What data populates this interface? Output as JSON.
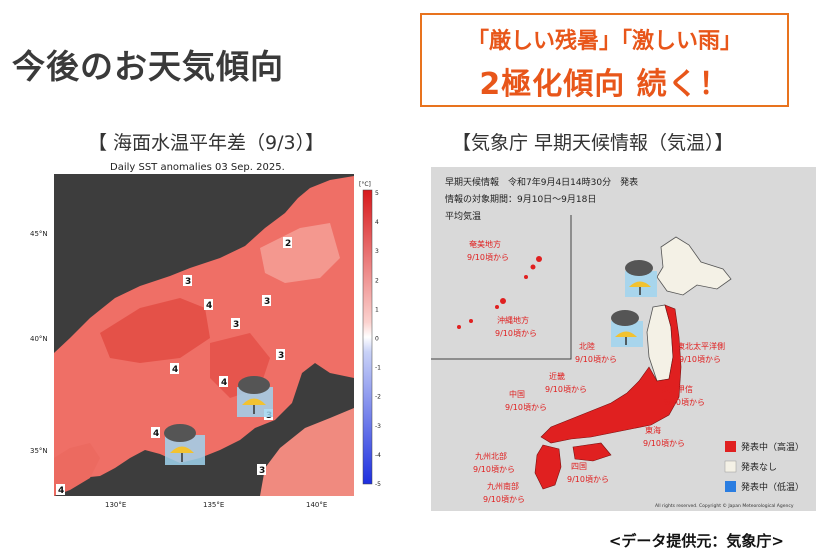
{
  "header": {
    "title": "今後のお天気傾向",
    "headline_line1": "「厳しい残暑」「激しい雨」",
    "headline_line2": "2極化傾向 続く！"
  },
  "left_panel": {
    "caption": "【 海面水温平年差（9/3）】",
    "map_title": "Daily SST anomalies 03 Sep. 2025.",
    "colorbar_unit": "[°C]",
    "colorbar_ticks": [
      "5",
      "4",
      "3",
      "2",
      "1",
      "0",
      "-1",
      "-2",
      "-3",
      "-4",
      "-5"
    ],
    "lat_labels": [
      "45°N",
      "40°N",
      "35°N"
    ],
    "lon_labels": [
      "130°E",
      "135°E",
      "140°E"
    ],
    "contour_labels": [
      "2",
      "3",
      "3",
      "4",
      "3",
      "3",
      "4",
      "4",
      "3",
      "4",
      "3",
      "4"
    ],
    "weather_icon": "rain-umbrella-icon"
  },
  "right_panel": {
    "caption": "【気象庁 早期天候情報（気温）】",
    "info_line1": "早期天候情報　令和7年9月4日14時30分　発表",
    "info_line2": "情報の対象期間：9月10日～9月18日",
    "info_line3": "平均気温",
    "regions": [
      {
        "name": "奄美地方",
        "date": "9/10頃から"
      },
      {
        "name": "沖縄地方",
        "date": "9/10頃から"
      },
      {
        "name": "北陸",
        "date": "9/10頃から"
      },
      {
        "name": "東北太平洋側",
        "date": "9/10頃から"
      },
      {
        "name": "近畿",
        "date": "9/10頃から"
      },
      {
        "name": "関東甲信",
        "date": "9/10頃から"
      },
      {
        "name": "中国",
        "date": "9/10頃から"
      },
      {
        "name": "東海",
        "date": "9/10頃から"
      },
      {
        "name": "九州北部",
        "date": "9/10頃から"
      },
      {
        "name": "四国",
        "date": "9/10頃から"
      },
      {
        "name": "九州南部",
        "date": "9/10頃から"
      }
    ],
    "legend": [
      {
        "label": "発表中（高温）",
        "color": "#e02020"
      },
      {
        "label": "発表なし",
        "color": "#f4f1e6"
      },
      {
        "label": "発表中（低温）",
        "color": "#2a7de1"
      }
    ],
    "copyright": "All rights reserved. Copyright © Japan Meteorological Agency"
  },
  "footer": {
    "credit": "<データ提供元：気象庁>"
  }
}
